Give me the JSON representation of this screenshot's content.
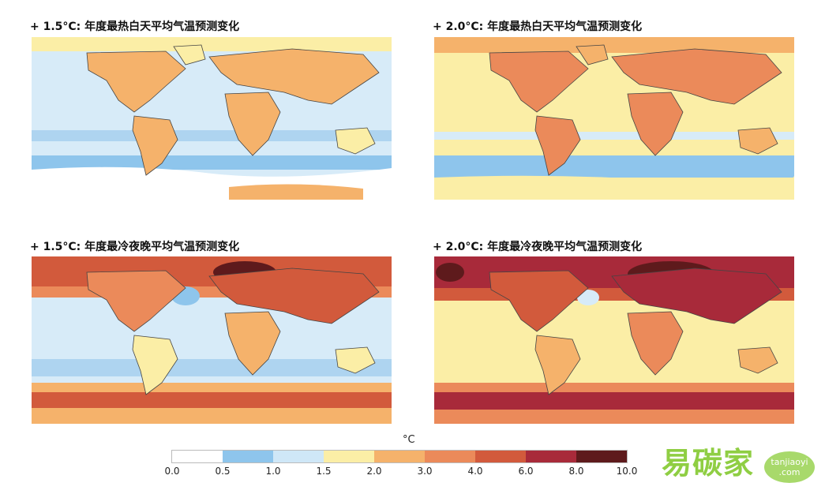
{
  "panels": [
    {
      "id": "tl",
      "title_prefix": "+ 1.5°C: ",
      "title_text": "年度最热白天平均气温预测变化"
    },
    {
      "id": "tr",
      "title_prefix": "+ 2.0°C: ",
      "title_text": "年度最热白天平均气温预测变化"
    },
    {
      "id": "bl",
      "title_prefix": "+ 1.5°C: ",
      "title_text": "年度最冷夜晚平均气温预测变化"
    },
    {
      "id": "br",
      "title_prefix": "+ 2.0°C: ",
      "title_text": "年度最冷夜晚平均气温预测变化"
    }
  ],
  "colorbar": {
    "unit": "°C",
    "ticks": [
      "0.0",
      "0.5",
      "1.0",
      "1.5",
      "2.0",
      "3.0",
      "4.0",
      "6.0",
      "8.0",
      "10.0"
    ],
    "colors": [
      "#ffffff",
      "#8ec5ec",
      "#cfe7f7",
      "#fbeea6",
      "#f5b26b",
      "#eb8a5a",
      "#d25a3c",
      "#a82a3a",
      "#5e1a1c"
    ]
  },
  "watermark": {
    "brand": "易碳家",
    "badge_line1": "tanjiaoyi",
    ".com": "",
    "badge_line2": ".com"
  }
}
